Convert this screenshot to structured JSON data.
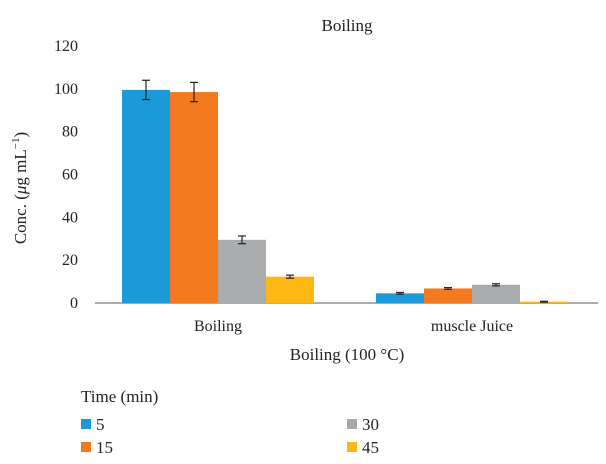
{
  "chart_data": {
    "type": "bar",
    "title": "Boiling",
    "xlabel": "Boiling (100 °C)",
    "ylabel_main": "Conc. (",
    "ylabel_mu": "μ",
    "ylabel_unit": "g mL",
    "ylabel_sup": "−1",
    "ylabel_close": ")",
    "ylim": [
      0,
      120
    ],
    "yticks": [
      "0",
      "20",
      "40",
      "60",
      "80",
      "100",
      "120"
    ],
    "categories": [
      "Boiling",
      "muscle Juice"
    ],
    "legend_title": "Time (min)",
    "legend_position": "bottom",
    "error_bars": true,
    "grid": false,
    "series": [
      {
        "name": "5",
        "color": "#1a9ad6",
        "values": [
          99.5,
          4.5
        ],
        "errors": [
          4.5,
          0.4
        ]
      },
      {
        "name": "15",
        "color": "#f47a20",
        "values": [
          98.5,
          6.8
        ],
        "errors": [
          4.5,
          0.4
        ]
      },
      {
        "name": "30",
        "color": "#aaabad",
        "values": [
          29.5,
          8.5
        ],
        "errors": [
          1.8,
          0.5
        ]
      },
      {
        "name": "45",
        "color": "#fdb714",
        "values": [
          12.3,
          0.6
        ],
        "errors": [
          0.7,
          0.2
        ]
      }
    ]
  }
}
